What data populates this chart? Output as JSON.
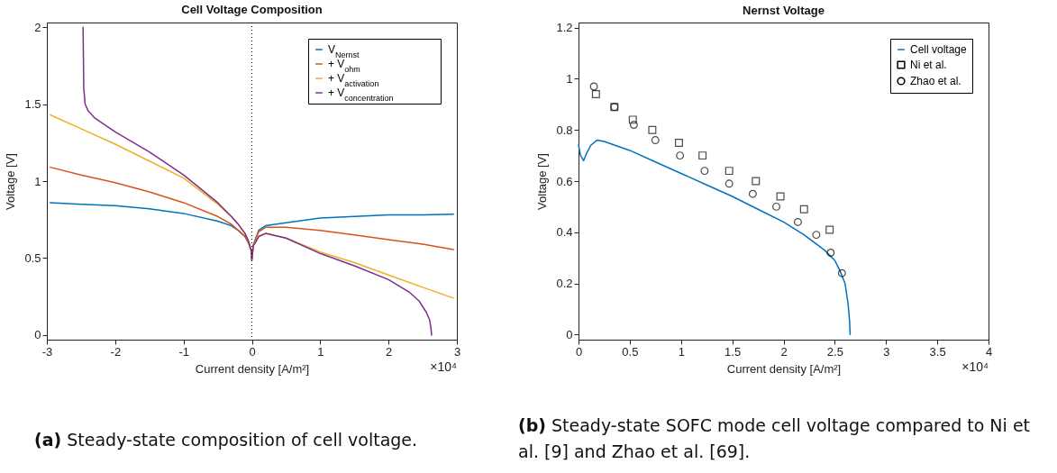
{
  "chart_data": [
    {
      "type": "line",
      "title": "Cell Voltage Composition",
      "xlabel": "Current density [A/m²]",
      "ylabel": "Voltage [V]",
      "xlim": [
        -3,
        3
      ],
      "xticks": [
        -3,
        -2,
        -1,
        0,
        1,
        2,
        3
      ],
      "ylim": [
        -0.03,
        2.03
      ],
      "yticks": [
        0,
        0.5,
        1,
        1.5,
        2
      ],
      "legend": "top right",
      "ref_lines": [
        {
          "axis": "x",
          "value": 0,
          "line_style": "dotted",
          "color": "#000000"
        }
      ],
      "annotations": [
        "×10⁴",
        "(a) Steady-state composition of cell voltage."
      ],
      "series": [
        {
          "name": "V$_{Nernst}$",
          "color": "#0072bd",
          "x": [
            -2.95,
            -2.5,
            -2,
            -1.5,
            -1,
            -0.5,
            -0.3,
            -0.2,
            -0.1,
            -0.05,
            -0.01,
            0,
            0.02,
            0.05,
            0.1,
            0.2,
            0.5,
            1,
            1.5,
            2,
            2.5,
            2.95
          ],
          "values": [
            0.86,
            0.85,
            0.84,
            0.82,
            0.79,
            0.74,
            0.71,
            0.68,
            0.64,
            0.6,
            0.55,
            0.49,
            0.58,
            0.62,
            0.68,
            0.71,
            0.73,
            0.76,
            0.77,
            0.78,
            0.78,
            0.785
          ]
        },
        {
          "name": "+ V$_{ohm}$",
          "color": "#d95319",
          "x": [
            -2.95,
            -2.5,
            -2,
            -1.5,
            -1,
            -0.5,
            -0.3,
            -0.2,
            -0.1,
            -0.05,
            -0.01,
            0,
            0.02,
            0.05,
            0.1,
            0.2,
            0.5,
            1,
            1.5,
            2,
            2.5,
            2.95
          ],
          "values": [
            1.09,
            1.04,
            0.99,
            0.93,
            0.86,
            0.77,
            0.72,
            0.68,
            0.64,
            0.6,
            0.55,
            0.49,
            0.58,
            0.62,
            0.67,
            0.7,
            0.7,
            0.68,
            0.65,
            0.62,
            0.59,
            0.555
          ]
        },
        {
          "name": "+ V$_{activation}$",
          "color": "#edb120",
          "x": [
            -2.95,
            -2.5,
            -2,
            -1.5,
            -1,
            -0.5,
            -0.3,
            -0.2,
            -0.1,
            -0.05,
            -0.01,
            0,
            0.02,
            0.05,
            0.1,
            0.2,
            0.5,
            1,
            1.5,
            2,
            2.5,
            2.95
          ],
          "values": [
            1.43,
            1.34,
            1.24,
            1.13,
            1.02,
            0.85,
            0.77,
            0.72,
            0.66,
            0.61,
            0.55,
            0.49,
            0.58,
            0.6,
            0.64,
            0.66,
            0.63,
            0.54,
            0.47,
            0.39,
            0.31,
            0.24
          ]
        },
        {
          "name": "+ V$_{concentration}$",
          "color": "#7e2f8e",
          "x": [
            -2.47,
            -2.46,
            -2.44,
            -2.4,
            -2.3,
            -2.2,
            -2,
            -1.5,
            -1,
            -0.5,
            -0.3,
            -0.2,
            -0.1,
            -0.05,
            -0.01,
            0,
            0.02,
            0.05,
            0.1,
            0.2,
            0.5,
            1,
            1.5,
            2,
            2.3,
            2.45,
            2.55,
            2.6,
            2.62,
            2.63
          ],
          "values": [
            2.0,
            1.6,
            1.5,
            1.46,
            1.41,
            1.38,
            1.32,
            1.19,
            1.04,
            0.86,
            0.77,
            0.72,
            0.66,
            0.61,
            0.55,
            0.49,
            0.58,
            0.6,
            0.64,
            0.66,
            0.63,
            0.53,
            0.45,
            0.36,
            0.28,
            0.22,
            0.15,
            0.1,
            0.05,
            0.0
          ]
        }
      ]
    },
    {
      "type": "line",
      "title": "Nernst Voltage",
      "xlabel": "Current density [A/m²]",
      "ylabel": "Voltage [V]",
      "xlim": [
        0,
        4
      ],
      "xticks": [
        0,
        0.5,
        1,
        1.5,
        2,
        2.5,
        3,
        3.5,
        4
      ],
      "ylim": [
        -0.02,
        1.22
      ],
      "yticks": [
        0,
        0.2,
        0.4,
        0.6,
        0.8,
        1,
        1.2
      ],
      "legend": "top right",
      "annotations": [
        "×10⁴",
        "(b) Steady-state SOFC mode cell voltage compared to Ni et al. [9] and Zhao et al. [69]."
      ],
      "series": [
        {
          "name": "Cell voltage",
          "color": "#0072bd",
          "x": [
            0,
            0.02,
            0.05,
            0.08,
            0.12,
            0.18,
            0.25,
            0.5,
            0.75,
            1,
            1.25,
            1.5,
            1.75,
            2,
            2.2,
            2.4,
            2.5,
            2.55,
            2.6,
            2.63,
            2.645,
            2.65
          ],
          "values": [
            0.74,
            0.7,
            0.68,
            0.71,
            0.74,
            0.76,
            0.755,
            0.72,
            0.675,
            0.63,
            0.585,
            0.54,
            0.49,
            0.44,
            0.39,
            0.33,
            0.29,
            0.25,
            0.2,
            0.12,
            0.05,
            0.0
          ]
        },
        {
          "name": "Ni et al.",
          "type": "scatter",
          "marker": "square",
          "color": "#000000",
          "x": [
            0.17,
            0.35,
            0.53,
            0.72,
            0.98,
            1.21,
            1.47,
            1.73,
            1.97,
            2.2,
            2.45
          ],
          "values": [
            0.94,
            0.89,
            0.84,
            0.8,
            0.75,
            0.7,
            0.64,
            0.6,
            0.54,
            0.49,
            0.41
          ]
        },
        {
          "name": "Zhao et al.",
          "type": "scatter",
          "marker": "circle",
          "color": "#000000",
          "x": [
            0.15,
            0.35,
            0.54,
            0.75,
            0.99,
            1.23,
            1.47,
            1.7,
            1.93,
            2.14,
            2.32,
            2.46,
            2.57
          ],
          "values": [
            0.97,
            0.89,
            0.82,
            0.76,
            0.7,
            0.64,
            0.59,
            0.55,
            0.5,
            0.44,
            0.39,
            0.32,
            0.24
          ]
        }
      ]
    }
  ]
}
